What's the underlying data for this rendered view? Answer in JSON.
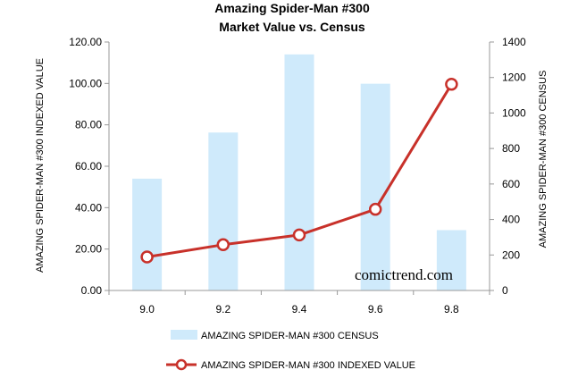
{
  "chart_data": {
    "type": "bar",
    "title": "Amazing Spider-Man #300",
    "subtitle": "Market Value vs. Census",
    "categories": [
      "9.0",
      "9.2",
      "9.4",
      "9.6",
      "9.8"
    ],
    "series": [
      {
        "name": "AMAZING SPIDER-MAN #300 CENSUS",
        "type": "bar",
        "axis": "right",
        "values": [
          630,
          890,
          1330,
          1165,
          340
        ],
        "color": "#cfeafb"
      },
      {
        "name": "AMAZING SPIDER-MAN #300 INDEXED VALUE",
        "type": "line",
        "axis": "left",
        "values": [
          16.2,
          22.1,
          26.8,
          39.2,
          99.6
        ],
        "color": "#c8312a"
      }
    ],
    "left_axis": {
      "label": "AMAZING SPIDER-MAN  #300 INDEXED  VALUE",
      "ticks": [
        "0.00",
        "20.00",
        "40.00",
        "60.00",
        "80.00",
        "100.00",
        "120.00"
      ],
      "ylim": [
        0,
        120
      ]
    },
    "right_axis": {
      "label": "AMAZING SPIDER-MAN  #300 CENSUS",
      "ticks": [
        "0",
        "200",
        "400",
        "600",
        "800",
        "1000",
        "1200",
        "1400"
      ],
      "ylim": [
        0,
        1400
      ]
    },
    "grid": false,
    "legend_position": "bottom",
    "watermark": "comictrend.com"
  }
}
